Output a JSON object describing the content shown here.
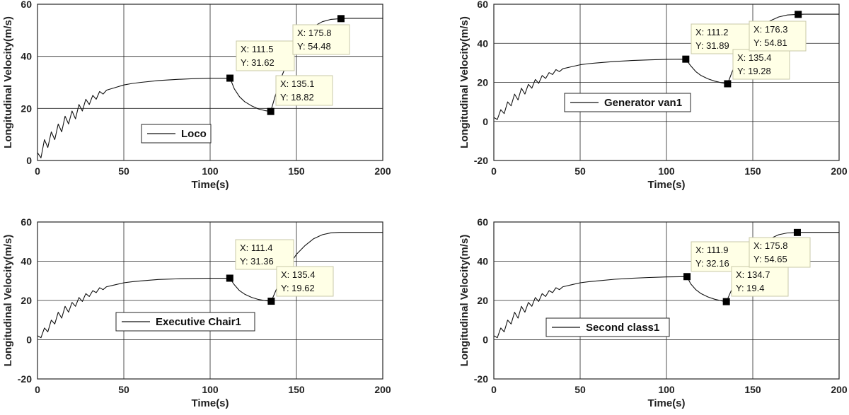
{
  "chart_data": [
    {
      "type": "line",
      "xlabel": "Time(s)",
      "ylabel": "Longitudinal Velocity(m/s)",
      "xlim": [
        0,
        200
      ],
      "ylim": [
        0,
        60
      ],
      "xticks": [
        "0",
        "50",
        "100",
        "150",
        "200"
      ],
      "yticks": [
        "0",
        "20",
        "40",
        "60"
      ],
      "grid": true,
      "legend": "Loco",
      "series": [
        {
          "name": "Loco",
          "x": [
            0,
            2,
            4,
            6,
            8,
            10,
            12,
            14,
            16,
            18,
            20,
            22,
            24,
            26,
            28,
            30,
            32,
            34,
            36,
            38,
            40,
            45,
            50,
            55,
            60,
            70,
            80,
            90,
            100,
            111.5,
            114,
            117,
            120,
            124,
            128,
            132,
            135.1,
            140,
            145,
            150,
            155,
            160,
            165,
            170,
            175.8,
            180,
            190,
            200
          ],
          "y": [
            3,
            1,
            8,
            5,
            11,
            8,
            14,
            11,
            17,
            14,
            19,
            16,
            21.5,
            19,
            23.5,
            21.5,
            25,
            23.5,
            26.5,
            25.5,
            27,
            28,
            29,
            29.6,
            30,
            30.7,
            31.1,
            31.4,
            31.6,
            31.62,
            27.5,
            24.5,
            22.6,
            21,
            19.8,
            19.1,
            18.82,
            30,
            38,
            44,
            48.5,
            51.5,
            53.3,
            54.2,
            54.48,
            54.6,
            54.6,
            54.6
          ]
        }
      ],
      "datatips": [
        {
          "x": 111.5,
          "y": 31.62,
          "lines": [
            "X: 111.5",
            "Y: 31.62"
          ]
        },
        {
          "x": 135.1,
          "y": 18.82,
          "lines": [
            "X: 135.1",
            "Y: 18.82"
          ]
        },
        {
          "x": 175.8,
          "y": 54.48,
          "lines": [
            "X: 175.8",
            "Y: 54.48"
          ]
        }
      ]
    },
    {
      "type": "line",
      "xlabel": "Time(s)",
      "ylabel": "Longitudinal Velocity(m/s)",
      "xlim": [
        0,
        200
      ],
      "ylim": [
        -20,
        60
      ],
      "xticks": [
        "0",
        "50",
        "100",
        "150",
        "200"
      ],
      "yticks": [
        "-20",
        "0",
        "20",
        "40",
        "60"
      ],
      "grid": true,
      "legend": "Generator van1",
      "series": [
        {
          "name": "Generator van1",
          "x": [
            0,
            2,
            4,
            6,
            8,
            10,
            12,
            14,
            16,
            18,
            20,
            22,
            24,
            26,
            28,
            30,
            32,
            34,
            36,
            38,
            40,
            45,
            50,
            55,
            60,
            70,
            80,
            90,
            100,
            111.2,
            114,
            117,
            120,
            124,
            128,
            132,
            135.4,
            140,
            145,
            150,
            155,
            160,
            165,
            170,
            176.3,
            180,
            190,
            200
          ],
          "y": [
            2,
            1,
            6,
            4,
            10,
            8,
            14,
            11,
            17,
            14,
            19,
            17,
            21.5,
            19.5,
            23.5,
            22,
            25,
            24,
            26.5,
            25.5,
            27,
            28,
            29,
            29.6,
            30,
            30.7,
            31.2,
            31.5,
            31.8,
            31.89,
            28.5,
            25.5,
            23.5,
            21.8,
            20.6,
            19.8,
            19.28,
            30,
            38,
            44,
            48.5,
            51.5,
            53.5,
            54.5,
            54.81,
            54.9,
            54.9,
            54.9
          ]
        }
      ],
      "datatips": [
        {
          "x": 111.2,
          "y": 31.89,
          "lines": [
            "X: 111.2",
            "Y: 31.89"
          ]
        },
        {
          "x": 135.4,
          "y": 19.28,
          "lines": [
            "X: 135.4",
            "Y: 19.28"
          ]
        },
        {
          "x": 176.3,
          "y": 54.81,
          "lines": [
            "X: 176.3",
            "Y: 54.81"
          ]
        }
      ]
    },
    {
      "type": "line",
      "xlabel": "Time(s)",
      "ylabel": "Longitudinal Velocity(m/s)",
      "xlim": [
        0,
        200
      ],
      "ylim": [
        -20,
        60
      ],
      "xticks": [
        "0",
        "50",
        "100",
        "150",
        "200"
      ],
      "yticks": [
        "-20",
        "0",
        "20",
        "40",
        "60"
      ],
      "grid": true,
      "legend": "Executive Chair1",
      "series": [
        {
          "name": "Executive Chair1",
          "x": [
            0,
            2,
            4,
            6,
            8,
            10,
            12,
            14,
            16,
            18,
            20,
            22,
            24,
            26,
            28,
            30,
            32,
            34,
            36,
            38,
            40,
            45,
            50,
            55,
            60,
            70,
            80,
            90,
            100,
            111.4,
            114,
            117,
            120,
            124,
            128,
            132,
            135.4,
            140,
            145,
            150,
            155,
            160,
            165,
            170,
            175,
            180,
            190,
            200
          ],
          "y": [
            2,
            1,
            6,
            4,
            10,
            8,
            14,
            11,
            17,
            14,
            19,
            17,
            21.5,
            19.5,
            23.5,
            22,
            25,
            24,
            26.5,
            25.5,
            27,
            28,
            29,
            29.6,
            30,
            30.7,
            31,
            31.2,
            31.3,
            31.36,
            28,
            25,
            23.2,
            21.6,
            20.5,
            19.9,
            19.62,
            29,
            37,
            43.5,
            48,
            51.5,
            53.5,
            54.5,
            54.7,
            54.7,
            54.7,
            54.7
          ]
        }
      ],
      "datatips": [
        {
          "x": 111.4,
          "y": 31.36,
          "lines": [
            "X: 111.4",
            "Y: 31.36"
          ]
        },
        {
          "x": 135.4,
          "y": 19.62,
          "lines": [
            "X: 135.4",
            "Y: 19.62"
          ]
        }
      ]
    },
    {
      "type": "line",
      "xlabel": "Time(s)",
      "ylabel": "Longitudinal Velocity(m/s)",
      "xlim": [
        0,
        200
      ],
      "ylim": [
        -20,
        60
      ],
      "xticks": [
        "0",
        "50",
        "100",
        "150",
        "200"
      ],
      "yticks": [
        "-20",
        "0",
        "20",
        "40",
        "60"
      ],
      "grid": true,
      "legend": "Second class1",
      "series": [
        {
          "name": "Second class1",
          "x": [
            0,
            2,
            4,
            6,
            8,
            10,
            12,
            14,
            16,
            18,
            20,
            22,
            24,
            26,
            28,
            30,
            32,
            34,
            36,
            38,
            40,
            45,
            50,
            55,
            60,
            70,
            80,
            90,
            100,
            111.9,
            114,
            117,
            120,
            124,
            128,
            132,
            134.7,
            140,
            145,
            150,
            155,
            160,
            165,
            170,
            175.8,
            180,
            190,
            200
          ],
          "y": [
            2,
            1,
            6,
            4,
            10,
            8,
            14,
            11,
            17,
            14,
            19,
            17,
            21.5,
            19.5,
            23.5,
            22,
            25,
            24,
            26.5,
            25.5,
            27,
            28,
            29,
            29.6,
            30,
            30.8,
            31.3,
            31.7,
            32,
            32.16,
            28.5,
            25.5,
            23.5,
            21.8,
            20.6,
            19.8,
            19.4,
            30,
            38,
            44,
            48.5,
            51.5,
            53.5,
            54.4,
            54.65,
            54.7,
            54.7,
            54.7
          ]
        }
      ],
      "datatips": [
        {
          "x": 111.9,
          "y": 32.16,
          "lines": [
            "X: 111.9",
            "Y: 32.16"
          ]
        },
        {
          "x": 134.7,
          "y": 19.4,
          "lines": [
            "X: 134.7",
            "Y: 19.4"
          ]
        },
        {
          "x": 175.8,
          "y": 54.65,
          "lines": [
            "X: 175.8",
            "Y: 54.65"
          ]
        }
      ]
    }
  ]
}
